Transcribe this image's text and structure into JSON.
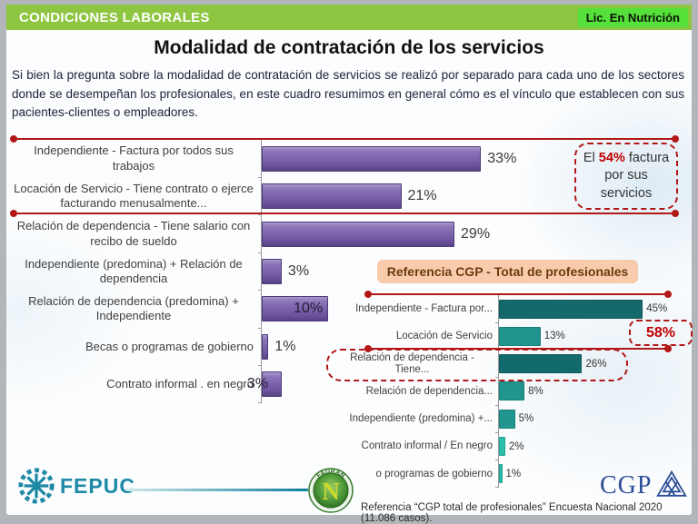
{
  "header": {
    "title": "CONDICIONES LABORALES",
    "badge": "Lic. En Nutrición"
  },
  "slide": {
    "title": "Modalidad de contratación de los servicios",
    "intro": "Si bien la pregunta sobre la modalidad de contratación de servicios se realizó por separado para cada uno de los sectores donde se desempeñan los profesionales, en este cuadro resumimos en general cómo es el vínculo que establecen con sus pacientes-clientes o empleadores."
  },
  "colors": {
    "header_green": "#8ec641",
    "badge_green": "#55e03a",
    "annotation_red": "#b21818",
    "highlight_red": "#c00000",
    "reference_peach": "#f8cbad",
    "purple_bar": "#7b63ac",
    "fepuc_teal": "#1d89a5",
    "cgp_blue": "#2d4d96"
  },
  "chart_data": [
    {
      "id": "main",
      "type": "bar",
      "orientation": "horizontal",
      "title": "",
      "categories": [
        "Independiente - Factura por todos sus trabajos",
        "Locación de Servicio - Tiene contrato o ejerce facturando menusalmente...",
        "Relación de dependencia - Tiene salario con recibo de sueldo",
        "Independiente (predomina) + Relación de dependencia",
        "Relación de dependencia (predomina) + Independiente",
        "Becas o programas de gobierno",
        "Contrato informal . en negro"
      ],
      "values": [
        33,
        21,
        29,
        3,
        10,
        1,
        3
      ],
      "unit": "%",
      "xlim": [
        0,
        45
      ],
      "grid": false,
      "legend": false,
      "bar_color": "#7b63ac",
      "bar_gradient": [
        "#a795cb",
        "#7b63ac",
        "#584184"
      ],
      "value_label_inside": [
        false,
        false,
        false,
        false,
        true,
        false,
        true
      ],
      "annotation": {
        "pre": "El ",
        "highlight": "54%",
        "post": " factura por sus servicios"
      }
    },
    {
      "id": "cgp",
      "type": "bar",
      "orientation": "horizontal",
      "title": "Referencia CGP - Total de profesionales",
      "categories": [
        "Independiente - Factura por...",
        "Locación de Servicio",
        "Relación de dependencia - Tiene...",
        "Relación de dependencia...",
        "Independiente (predomina) +...",
        "Contrato informal / En negro",
        "o programas de gobierno"
      ],
      "values": [
        45,
        13,
        26,
        8,
        5,
        2,
        1
      ],
      "unit": "%",
      "xlim": [
        0,
        58
      ],
      "grid": false,
      "legend": false,
      "colors": [
        "#15696b",
        "#1f958d",
        "#136a6c",
        "#1f958d",
        "#21968e",
        "#2cc0ac",
        "#2abcab"
      ],
      "annotation": {
        "highlight": "58%"
      }
    }
  ],
  "footer": {
    "fepuc_label": "FEPUC",
    "fagran_arc": "FAGRAN",
    "fagran_letter": "N",
    "cgp_label": "CGP",
    "reference": "Referencia “CGP total de profesionales” Encuesta Nacional 2020 (11.086 casos)."
  }
}
